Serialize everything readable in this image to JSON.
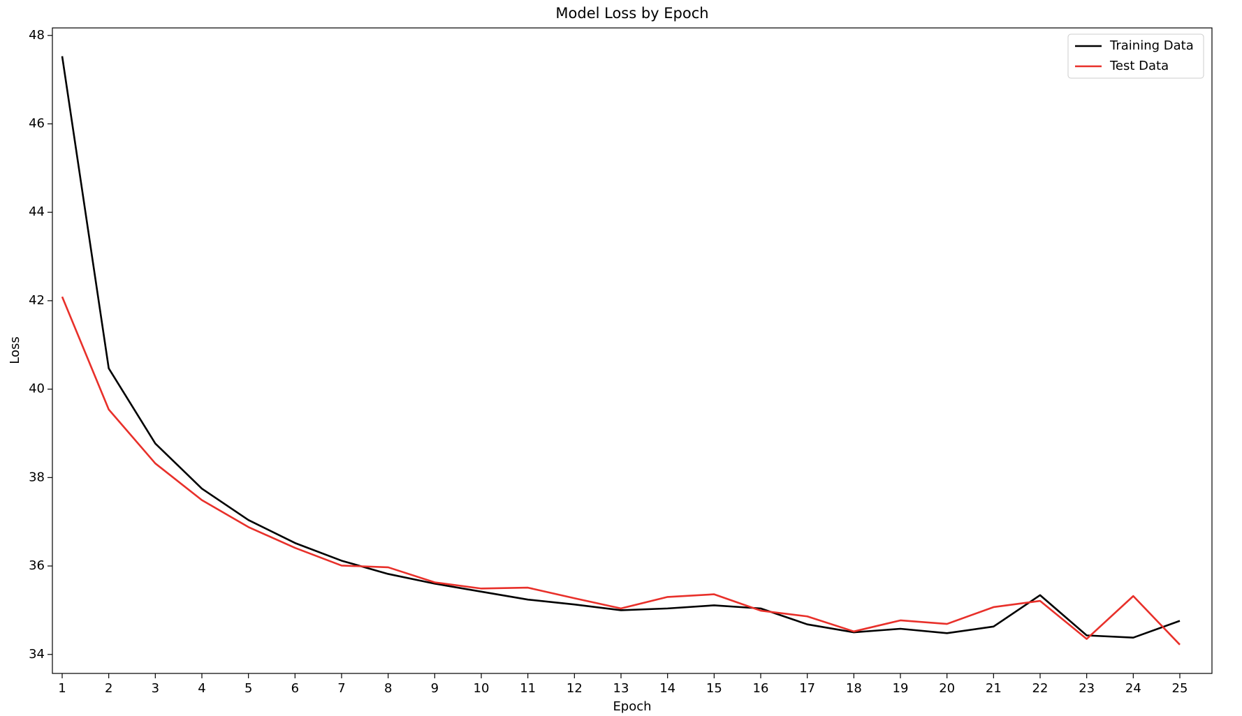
{
  "chart_data": {
    "type": "line",
    "title": "Model Loss by Epoch",
    "x_label": "Epoch",
    "y_label": "Loss",
    "x": [
      1,
      2,
      3,
      4,
      5,
      6,
      7,
      8,
      9,
      10,
      11,
      12,
      13,
      14,
      15,
      16,
      17,
      18,
      19,
      20,
      21,
      22,
      23,
      24,
      25
    ],
    "series": [
      {
        "name": "Training Data",
        "color": "#000000",
        "values": [
          47.53,
          40.47,
          38.77,
          37.75,
          37.04,
          36.52,
          36.12,
          35.82,
          35.6,
          35.42,
          35.24,
          35.13,
          35.0,
          35.04,
          35.11,
          35.04,
          34.68,
          34.5,
          34.58,
          34.48,
          34.63,
          35.34,
          34.43,
          34.38,
          34.76
        ]
      },
      {
        "name": "Test Data",
        "color": "#e8302a",
        "values": [
          42.09,
          39.54,
          38.32,
          37.49,
          36.88,
          36.41,
          36.01,
          35.97,
          35.63,
          35.49,
          35.51,
          35.27,
          35.04,
          35.3,
          35.36,
          34.99,
          34.86,
          34.52,
          34.77,
          34.69,
          35.07,
          35.21,
          34.35,
          35.32,
          34.22
        ]
      }
    ],
    "xlim": [
      0.79,
      25.69
    ],
    "ylim": [
      33.57,
      48.17
    ],
    "xticks": [
      1,
      2,
      3,
      4,
      5,
      6,
      7,
      8,
      9,
      10,
      11,
      12,
      13,
      14,
      15,
      16,
      17,
      18,
      19,
      20,
      21,
      22,
      23,
      24,
      25
    ],
    "yticks": [
      34,
      36,
      38,
      40,
      42,
      44,
      46,
      48
    ],
    "legend": "upper-right"
  }
}
